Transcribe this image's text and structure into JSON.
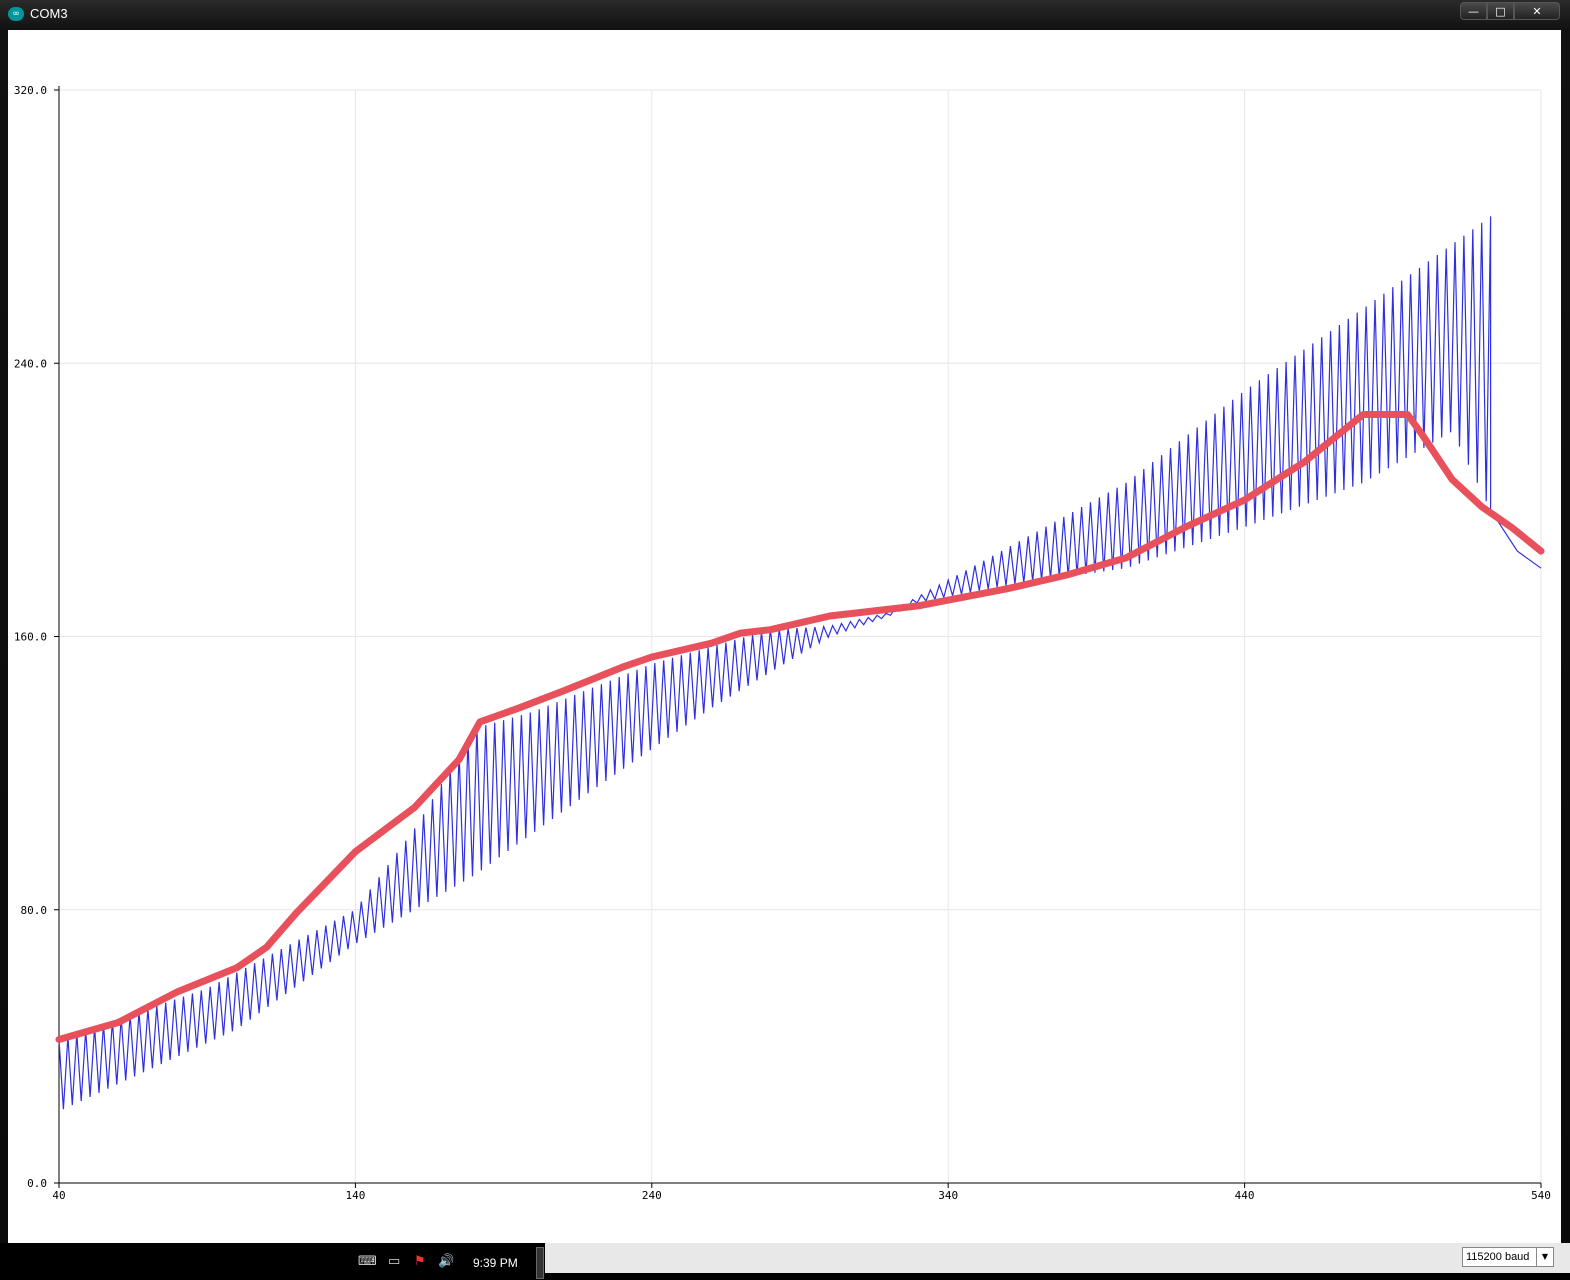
{
  "window": {
    "title": "COM3",
    "app_icon": "arduino-infinity-icon",
    "buttons": {
      "minimize": "—",
      "maximize": "□",
      "close": "✕"
    }
  },
  "chart_data": {
    "type": "line",
    "x_ticks": [
      "40",
      "140",
      "240",
      "340",
      "440",
      "540"
    ],
    "y_ticks": [
      "0.0",
      "80.0",
      "160.0",
      "240.0",
      "320.0"
    ],
    "xlim": [
      40,
      540
    ],
    "ylim": [
      0,
      320
    ],
    "grid": true,
    "series": [
      {
        "color": "#2f2fe0",
        "style": "sawtooth",
        "period": 3,
        "peaks": [
          [
            40,
            42
          ],
          [
            90,
            57
          ],
          [
            140,
            80
          ],
          [
            161,
            105
          ],
          [
            180,
            133
          ],
          [
            200,
            138
          ],
          [
            240,
            152
          ],
          [
            280,
            162
          ],
          [
            300,
            163
          ],
          [
            320,
            167
          ],
          [
            360,
            186
          ],
          [
            400,
            205
          ],
          [
            440,
            232
          ],
          [
            480,
            256
          ],
          [
            523,
            283
          ]
        ],
        "troughs": [
          [
            40,
            21
          ],
          [
            100,
            45
          ],
          [
            140,
            70
          ],
          [
            180,
            90
          ],
          [
            220,
            115
          ],
          [
            260,
            139
          ],
          [
            300,
            160
          ],
          [
            320,
            166
          ],
          [
            330,
            170
          ],
          [
            360,
            175
          ],
          [
            400,
            180
          ],
          [
            440,
            192
          ],
          [
            480,
            205
          ],
          [
            510,
            220
          ],
          [
            523,
            197
          ]
        ],
        "tail": [
          [
            523,
            197
          ],
          [
            532,
            185
          ],
          [
            540,
            180
          ]
        ]
      },
      {
        "color": "#e8505b",
        "style": "thick",
        "points": [
          [
            40,
            42
          ],
          [
            60,
            47
          ],
          [
            80,
            56
          ],
          [
            100,
            63
          ],
          [
            110,
            69
          ],
          [
            120,
            79
          ],
          [
            140,
            97
          ],
          [
            160,
            110
          ],
          [
            175,
            124
          ],
          [
            182,
            135
          ],
          [
            195,
            139
          ],
          [
            210,
            144
          ],
          [
            230,
            151
          ],
          [
            240,
            154
          ],
          [
            260,
            158
          ],
          [
            270,
            161
          ],
          [
            280,
            162
          ],
          [
            300,
            166
          ],
          [
            310,
            167
          ],
          [
            330,
            169
          ],
          [
            360,
            174
          ],
          [
            380,
            178
          ],
          [
            400,
            183
          ],
          [
            420,
            192
          ],
          [
            440,
            200
          ],
          [
            460,
            211
          ],
          [
            480,
            225
          ],
          [
            495,
            225
          ],
          [
            500,
            219
          ],
          [
            510,
            206
          ],
          [
            520,
            198
          ],
          [
            530,
            192
          ],
          [
            540,
            185
          ]
        ]
      }
    ]
  },
  "tray": {
    "icons": [
      "keyboard-icon",
      "network-icon",
      "flag-alert-icon",
      "volume-icon"
    ],
    "icon_glyphs": [
      "⌨",
      "▭",
      "⚑",
      "🔊"
    ],
    "clock": "9:39 PM"
  },
  "serial_monitor": {
    "baud_value": "115200 baud",
    "baud_arrow": "▼"
  }
}
